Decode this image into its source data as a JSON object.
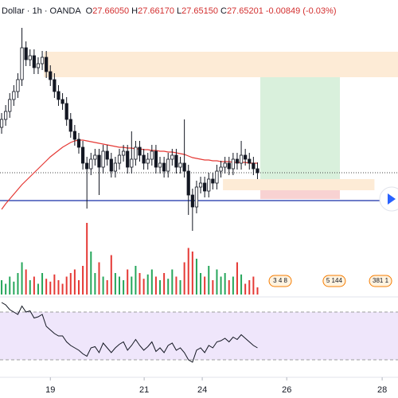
{
  "chart_data": {
    "type": "candlestick",
    "header": {
      "symbol": "Dollar",
      "interval": "1h",
      "source": "OANDA",
      "o_label": "O",
      "o": "27.66050",
      "h_label": "H",
      "h": "27.66170",
      "l_label": "L",
      "l": "27.65150",
      "c_label": "C",
      "c": "27.65201",
      "change": "-0.00849 (-0.03%)"
    },
    "x": [
      0,
      1,
      2,
      3,
      4,
      5,
      6,
      7,
      8,
      9,
      10,
      11,
      12,
      13,
      14,
      15,
      16,
      17,
      18,
      19,
      20,
      21,
      22,
      23,
      24,
      25,
      26,
      27,
      28,
      29,
      30,
      31,
      32,
      33,
      34,
      35,
      36,
      37,
      38,
      39,
      40,
      41,
      42,
      43,
      44,
      45,
      46,
      47,
      48,
      49,
      50,
      51,
      52,
      53,
      54,
      55,
      56,
      57,
      58,
      59,
      60,
      61,
      62,
      63
    ],
    "open": [
      27.766,
      27.786,
      27.806,
      27.836,
      27.856,
      27.886,
      27.966,
      27.936,
      27.946,
      27.916,
      27.926,
      27.942,
      27.906,
      27.886,
      27.856,
      27.836,
      27.826,
      27.786,
      27.756,
      27.736,
      27.716,
      27.676,
      27.662,
      27.686,
      27.696,
      27.666,
      27.706,
      27.686,
      27.656,
      27.676,
      27.696,
      27.706,
      27.666,
      27.686,
      27.716,
      27.696,
      27.676,
      27.686,
      27.706,
      27.666,
      27.676,
      27.656,
      27.686,
      27.696,
      27.666,
      27.676,
      27.656,
      27.596,
      27.566,
      27.616,
      27.626,
      27.606,
      27.636,
      27.626,
      27.656,
      27.666,
      27.676,
      27.662,
      27.686,
      27.676,
      27.696,
      27.686,
      27.676,
      27.662
    ],
    "high": [
      27.802,
      27.822,
      27.852,
      27.872,
      27.902,
      28.016,
      27.982,
      27.962,
      27.962,
      27.942,
      27.958,
      27.958,
      27.922,
      27.902,
      27.872,
      27.852,
      27.842,
      27.802,
      27.772,
      27.752,
      27.732,
      27.692,
      27.702,
      27.712,
      27.712,
      27.722,
      27.722,
      27.702,
      27.692,
      27.712,
      27.722,
      27.722,
      27.756,
      27.732,
      27.732,
      27.712,
      27.702,
      27.722,
      27.722,
      27.692,
      27.692,
      27.702,
      27.712,
      27.712,
      27.692,
      27.786,
      27.672,
      27.612,
      27.632,
      27.642,
      27.642,
      27.652,
      27.652,
      27.672,
      27.682,
      27.692,
      27.692,
      27.702,
      27.702,
      27.732,
      27.712,
      27.702,
      27.692,
      27.678
    ],
    "low": [
      27.75,
      27.77,
      27.79,
      27.82,
      27.84,
      27.87,
      27.92,
      27.92,
      27.9,
      27.9,
      27.91,
      27.89,
      27.87,
      27.84,
      27.82,
      27.81,
      27.77,
      27.74,
      27.72,
      27.7,
      27.66,
      27.562,
      27.646,
      27.67,
      27.596,
      27.65,
      27.67,
      27.64,
      27.64,
      27.66,
      27.68,
      27.65,
      27.65,
      27.67,
      27.68,
      27.66,
      27.66,
      27.67,
      27.65,
      27.65,
      27.64,
      27.64,
      27.67,
      27.65,
      27.65,
      27.64,
      27.546,
      27.506,
      27.55,
      27.6,
      27.59,
      27.59,
      27.61,
      27.61,
      27.64,
      27.65,
      27.646,
      27.646,
      27.66,
      27.66,
      27.67,
      27.66,
      27.646,
      27.636
    ],
    "close": [
      27.786,
      27.806,
      27.836,
      27.856,
      27.886,
      27.966,
      27.936,
      27.946,
      27.916,
      27.926,
      27.942,
      27.906,
      27.886,
      27.856,
      27.836,
      27.826,
      27.786,
      27.756,
      27.736,
      27.716,
      27.676,
      27.662,
      27.686,
      27.696,
      27.666,
      27.706,
      27.686,
      27.656,
      27.676,
      27.696,
      27.706,
      27.666,
      27.686,
      27.716,
      27.696,
      27.676,
      27.686,
      27.706,
      27.666,
      27.676,
      27.656,
      27.686,
      27.696,
      27.666,
      27.676,
      27.656,
      27.596,
      27.566,
      27.616,
      27.626,
      27.606,
      27.636,
      27.626,
      27.656,
      27.666,
      27.676,
      27.662,
      27.686,
      27.676,
      27.696,
      27.686,
      27.676,
      27.662,
      27.652
    ],
    "ma": [
      27.56,
      27.574,
      27.586,
      27.598,
      27.61,
      27.622,
      27.632,
      27.642,
      27.652,
      27.662,
      27.672,
      27.682,
      27.692,
      27.7,
      27.708,
      27.716,
      27.722,
      27.728,
      27.732,
      27.734,
      27.734,
      27.732,
      27.73,
      27.728,
      27.726,
      27.724,
      27.722,
      27.72,
      27.718,
      27.716,
      27.716,
      27.714,
      27.714,
      27.712,
      27.712,
      27.71,
      27.71,
      27.708,
      27.708,
      27.706,
      27.706,
      27.704,
      27.704,
      27.702,
      27.7,
      27.698,
      27.694,
      27.69,
      27.688,
      27.686,
      27.684,
      27.684,
      27.682,
      27.682,
      27.68,
      27.68,
      27.68,
      27.678,
      27.678,
      27.678,
      27.678,
      27.676,
      27.676,
      27.676
    ],
    "ma_color": "#e53935",
    "volume": [
      20,
      15,
      25,
      18,
      30,
      45,
      35,
      20,
      25,
      15,
      30,
      22,
      18,
      28,
      20,
      15,
      25,
      30,
      35,
      20,
      40,
      100,
      60,
      30,
      45,
      25,
      20,
      55,
      30,
      25,
      20,
      35,
      25,
      40,
      30,
      22,
      28,
      35,
      25,
      20,
      30,
      22,
      35,
      25,
      20,
      45,
      65,
      60,
      50,
      30,
      25,
      40,
      20,
      35,
      25,
      30,
      20,
      25,
      45,
      28,
      15,
      20,
      25,
      10
    ],
    "rsi": [
      78,
      76,
      72,
      70,
      68,
      75,
      70,
      71,
      65,
      66,
      68,
      58,
      55,
      52,
      50,
      50,
      45,
      42,
      40,
      38,
      35,
      33,
      40,
      41,
      36,
      44,
      40,
      36,
      40,
      43,
      45,
      38,
      42,
      47,
      42,
      38,
      41,
      45,
      37,
      40,
      36,
      42,
      44,
      38,
      40,
      36,
      30,
      28,
      38,
      40,
      36,
      42,
      40,
      45,
      46,
      48,
      45,
      49,
      47,
      51,
      48,
      45,
      42,
      40
    ],
    "rsi_band": [
      30,
      70
    ],
    "xlim": [
      -0.4,
      97.6
    ],
    "ylim": [
      27.486,
      28.086
    ],
    "vlim": [
      0,
      100
    ],
    "rlim": [
      20,
      80
    ],
    "xticks": [
      {
        "value": 12,
        "label": "19"
      },
      {
        "value": 35.1,
        "label": "21"
      },
      {
        "value": 49.4,
        "label": "24"
      },
      {
        "value": 70.2,
        "label": "26"
      },
      {
        "value": 93.7,
        "label": "28"
      }
    ],
    "zones": [
      {
        "from": 27.892,
        "to": 27.956,
        "x0": 10.4,
        "x1": 97.6,
        "color": "#fdebd6"
      },
      {
        "from": 27.636,
        "to": 27.892,
        "x0": 63.7,
        "x1": 83.3,
        "color": "#d9f0dc"
      },
      {
        "from": 27.586,
        "to": 27.636,
        "x0": 63.7,
        "x1": 83.3,
        "color": "#f8d2d2"
      },
      {
        "from": 27.608,
        "to": 27.636,
        "x0": 54.5,
        "x1": 91.8,
        "color": "#fdebd6"
      }
    ],
    "price_lines": [
      {
        "value": 27.652,
        "color": "#444444",
        "dash": "1,2"
      },
      {
        "value": 27.582,
        "color": "#3f51b5",
        "dash": ""
      }
    ],
    "up_color": "#26a65b",
    "down_color": "#e53935",
    "events": [
      {
        "x": 68.6,
        "label": "3 4 8"
      },
      {
        "x": 81.9,
        "label": "5 144"
      },
      {
        "x": 93.3,
        "label": "381 1"
      }
    ]
  }
}
